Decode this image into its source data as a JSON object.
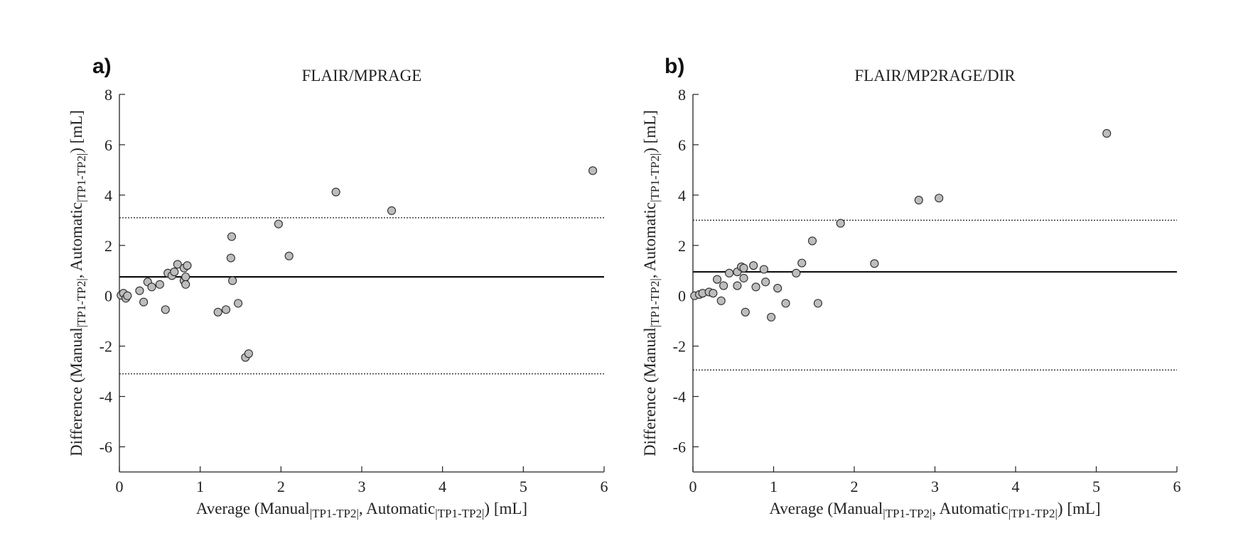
{
  "chart_data": [
    {
      "type": "scatter",
      "panel_label": "a)",
      "title": "FLAIR/MPRAGE",
      "xlabel": {
        "pre": "Average (Manual",
        "sub1": "|TP1-TP2|",
        "mid": ", Automatic",
        "sub2": "|TP1-TP2|",
        "post": ") [mL]"
      },
      "ylabel": {
        "pre": "Difference (Manual",
        "sub1": "|TP1-TP2|",
        "mid": ", Automatic",
        "sub2": "|TP1-TP2|",
        "post": ") [mL]"
      },
      "xlim": [
        0,
        6
      ],
      "ylim": [
        -7,
        8
      ],
      "xticks": [
        0,
        1,
        2,
        3,
        4,
        5,
        6
      ],
      "yticks": [
        -6,
        -4,
        -2,
        0,
        2,
        4,
        6,
        8
      ],
      "mean_difference": 0.75,
      "limits_of_agreement": [
        -3.1,
        3.1
      ],
      "points": [
        [
          0.02,
          0.02
        ],
        [
          0.05,
          0.1
        ],
        [
          0.08,
          -0.1
        ],
        [
          0.1,
          0.0
        ],
        [
          0.25,
          0.2
        ],
        [
          0.3,
          -0.25
        ],
        [
          0.35,
          0.55
        ],
        [
          0.4,
          0.35
        ],
        [
          0.5,
          0.45
        ],
        [
          0.57,
          -0.55
        ],
        [
          0.6,
          0.9
        ],
        [
          0.65,
          0.8
        ],
        [
          0.68,
          0.95
        ],
        [
          0.72,
          1.25
        ],
        [
          0.8,
          0.6
        ],
        [
          0.8,
          1.1
        ],
        [
          0.82,
          0.45
        ],
        [
          0.82,
          0.75
        ],
        [
          0.84,
          1.2
        ],
        [
          1.22,
          -0.65
        ],
        [
          1.32,
          -0.55
        ],
        [
          1.38,
          1.5
        ],
        [
          1.39,
          2.35
        ],
        [
          1.4,
          0.6
        ],
        [
          1.47,
          -0.3
        ],
        [
          1.56,
          -2.45
        ],
        [
          1.6,
          -2.3
        ],
        [
          1.97,
          2.85
        ],
        [
          2.1,
          1.58
        ],
        [
          2.68,
          4.12
        ],
        [
          3.37,
          3.38
        ],
        [
          5.86,
          4.97
        ]
      ]
    },
    {
      "type": "scatter",
      "panel_label": "b)",
      "title": "FLAIR/MP2RAGE/DIR",
      "xlabel": {
        "pre": "Average (Manual",
        "sub1": "|TP1-TP2|",
        "mid": ", Automatic",
        "sub2": "|TP1-TP2|",
        "post": ") [mL]"
      },
      "ylabel": {
        "pre": "Difference (Manual",
        "sub1": "|TP1-TP2|",
        "mid": ", Automatic",
        "sub2": "|TP1-TP2|",
        "post": ") [mL]"
      },
      "xlim": [
        0,
        6
      ],
      "ylim": [
        -7,
        8
      ],
      "xticks": [
        0,
        1,
        2,
        3,
        4,
        5,
        6
      ],
      "yticks": [
        -6,
        -4,
        -2,
        0,
        2,
        4,
        6,
        8
      ],
      "mean_difference": 0.95,
      "limits_of_agreement": [
        -2.95,
        3.0
      ],
      "points": [
        [
          0.02,
          0.0
        ],
        [
          0.08,
          0.05
        ],
        [
          0.12,
          0.1
        ],
        [
          0.2,
          0.15
        ],
        [
          0.25,
          0.1
        ],
        [
          0.3,
          0.65
        ],
        [
          0.35,
          -0.2
        ],
        [
          0.38,
          0.4
        ],
        [
          0.45,
          0.9
        ],
        [
          0.55,
          0.95
        ],
        [
          0.55,
          0.4
        ],
        [
          0.6,
          1.15
        ],
        [
          0.63,
          0.7
        ],
        [
          0.63,
          1.1
        ],
        [
          0.65,
          -0.65
        ],
        [
          0.75,
          1.2
        ],
        [
          0.78,
          0.35
        ],
        [
          0.88,
          1.05
        ],
        [
          0.9,
          0.55
        ],
        [
          0.97,
          -0.85
        ],
        [
          1.05,
          0.3
        ],
        [
          1.15,
          -0.3
        ],
        [
          1.28,
          0.9
        ],
        [
          1.35,
          1.3
        ],
        [
          1.48,
          2.18
        ],
        [
          1.55,
          -0.3
        ],
        [
          1.83,
          2.88
        ],
        [
          2.25,
          1.28
        ],
        [
          2.8,
          3.8
        ],
        [
          3.05,
          3.88
        ],
        [
          5.13,
          6.45
        ]
      ]
    }
  ]
}
